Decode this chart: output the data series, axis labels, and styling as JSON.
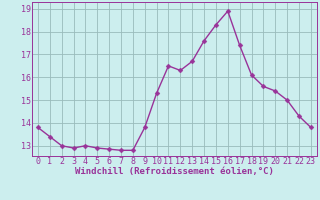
{
  "x": [
    0,
    1,
    2,
    3,
    4,
    5,
    6,
    7,
    8,
    9,
    10,
    11,
    12,
    13,
    14,
    15,
    16,
    17,
    18,
    19,
    20,
    21,
    22,
    23
  ],
  "y": [
    13.8,
    13.4,
    13.0,
    12.9,
    13.0,
    12.9,
    12.85,
    12.8,
    12.8,
    13.8,
    15.3,
    16.5,
    16.3,
    16.7,
    17.6,
    18.3,
    18.9,
    17.4,
    16.1,
    15.6,
    15.4,
    15.0,
    14.3,
    13.8
  ],
  "line_color": "#993399",
  "marker": "D",
  "marker_size": 2.5,
  "bg_color": "#cceeee",
  "grid_color": "#99bbbb",
  "xlabel": "Windchill (Refroidissement éolien,°C)",
  "ylabel_ticks": [
    13,
    14,
    15,
    16,
    17,
    18,
    19
  ],
  "ylim": [
    12.55,
    19.3
  ],
  "xlim": [
    -0.5,
    23.5
  ],
  "xlabel_fontsize": 6.5,
  "tick_fontsize": 6.0,
  "line_width": 1.0
}
